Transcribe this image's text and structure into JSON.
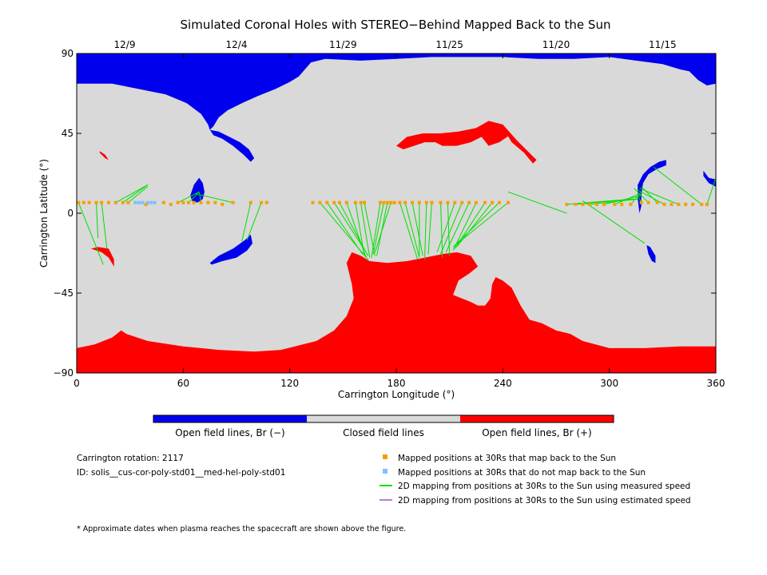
{
  "chart_data": {
    "type": "map",
    "title": "Simulated Coronal Holes with STEREO−Behind Mapped Back to the Sun",
    "xlabel": "Carrington Longitude (°)",
    "ylabel": "Carrington Latitude (°)",
    "xlim": [
      0,
      360
    ],
    "ylim": [
      -90,
      90
    ],
    "x_ticks": [
      "0",
      "60",
      "120",
      "180",
      "240",
      "300",
      "360"
    ],
    "y_ticks": [
      "90",
      "45",
      "0",
      "−45",
      "−90"
    ],
    "top_dates": [
      {
        "label": "12/9",
        "lon": 27
      },
      {
        "label": "12/4",
        "lon": 90
      },
      {
        "label": "11/29",
        "lon": 150
      },
      {
        "label": "11/25",
        "lon": 210
      },
      {
        "label": "11/20",
        "lon": 270
      },
      {
        "label": "11/15",
        "lon": 330
      }
    ],
    "colors": {
      "negative": "#0000ee",
      "closed": "#d9d9d9",
      "positive": "#ff0000",
      "mapped": "#f5a000",
      "unmapped": "#7fbfff",
      "measured": "#00e000",
      "estimated": "#b080e0"
    },
    "mapped_points": [
      {
        "lon": 1,
        "lat": 6
      },
      {
        "lon": 4,
        "lat": 6
      },
      {
        "lon": 7,
        "lat": 6
      },
      {
        "lon": 11,
        "lat": 6
      },
      {
        "lon": 14,
        "lat": 6
      },
      {
        "lon": 18,
        "lat": 6
      },
      {
        "lon": 22,
        "lat": 6
      },
      {
        "lon": 26,
        "lat": 6
      },
      {
        "lon": 29,
        "lat": 6
      },
      {
        "lon": 39,
        "lat": 5
      },
      {
        "lon": 49,
        "lat": 6
      },
      {
        "lon": 53,
        "lat": 5
      },
      {
        "lon": 57,
        "lat": 6
      },
      {
        "lon": 60,
        "lat": 6
      },
      {
        "lon": 63,
        "lat": 6
      },
      {
        "lon": 66,
        "lat": 6
      },
      {
        "lon": 70,
        "lat": 6
      },
      {
        "lon": 74,
        "lat": 6
      },
      {
        "lon": 78,
        "lat": 6
      },
      {
        "lon": 82,
        "lat": 5
      },
      {
        "lon": 88,
        "lat": 6
      },
      {
        "lon": 98,
        "lat": 6
      },
      {
        "lon": 104,
        "lat": 6
      },
      {
        "lon": 107,
        "lat": 6
      },
      {
        "lon": 133,
        "lat": 6
      },
      {
        "lon": 137,
        "lat": 6
      },
      {
        "lon": 141,
        "lat": 6
      },
      {
        "lon": 145,
        "lat": 6
      },
      {
        "lon": 148,
        "lat": 6
      },
      {
        "lon": 152,
        "lat": 6
      },
      {
        "lon": 157,
        "lat": 6
      },
      {
        "lon": 160,
        "lat": 6
      },
      {
        "lon": 162,
        "lat": 6
      },
      {
        "lon": 171,
        "lat": 6
      },
      {
        "lon": 173,
        "lat": 6
      },
      {
        "lon": 175,
        "lat": 6
      },
      {
        "lon": 177,
        "lat": 6
      },
      {
        "lon": 179,
        "lat": 6
      },
      {
        "lon": 182,
        "lat": 6
      },
      {
        "lon": 185,
        "lat": 6
      },
      {
        "lon": 189,
        "lat": 6
      },
      {
        "lon": 193,
        "lat": 6
      },
      {
        "lon": 197,
        "lat": 6
      },
      {
        "lon": 200,
        "lat": 6
      },
      {
        "lon": 205,
        "lat": 6
      },
      {
        "lon": 209,
        "lat": 6
      },
      {
        "lon": 213,
        "lat": 6
      },
      {
        "lon": 217,
        "lat": 6
      },
      {
        "lon": 221,
        "lat": 6
      },
      {
        "lon": 225,
        "lat": 6
      },
      {
        "lon": 230,
        "lat": 6
      },
      {
        "lon": 234,
        "lat": 6
      },
      {
        "lon": 238,
        "lat": 6
      },
      {
        "lon": 243,
        "lat": 6
      },
      {
        "lon": 276,
        "lat": 5
      },
      {
        "lon": 281,
        "lat": 5
      },
      {
        "lon": 285,
        "lat": 5
      },
      {
        "lon": 289,
        "lat": 5
      },
      {
        "lon": 293,
        "lat": 5
      },
      {
        "lon": 297,
        "lat": 5
      },
      {
        "lon": 303,
        "lat": 5
      },
      {
        "lon": 307,
        "lat": 5
      },
      {
        "lon": 312,
        "lat": 5
      },
      {
        "lon": 318,
        "lat": 6
      },
      {
        "lon": 322,
        "lat": 6
      },
      {
        "lon": 327,
        "lat": 6
      },
      {
        "lon": 331,
        "lat": 5
      },
      {
        "lon": 335,
        "lat": 5
      },
      {
        "lon": 339,
        "lat": 5
      },
      {
        "lon": 343,
        "lat": 5
      },
      {
        "lon": 347,
        "lat": 5
      },
      {
        "lon": 352,
        "lat": 5
      },
      {
        "lon": 355,
        "lat": 5
      }
    ],
    "unmapped_points": [
      {
        "lon": 33,
        "lat": 6
      },
      {
        "lon": 35,
        "lat": 6
      },
      {
        "lon": 37,
        "lat": 6
      },
      {
        "lon": 40,
        "lat": 6
      },
      {
        "lon": 42,
        "lat": 6
      },
      {
        "lon": 44,
        "lat": 6
      }
    ],
    "measured_lines": [
      {
        "from": [
          1,
          6
        ],
        "to": [
          15,
          -29
        ]
      },
      {
        "from": [
          11,
          6
        ],
        "to": [
          12,
          -14
        ]
      },
      {
        "from": [
          14,
          6
        ],
        "to": [
          17,
          -20
        ]
      },
      {
        "from": [
          22,
          6
        ],
        "to": [
          40,
          16
        ]
      },
      {
        "from": [
          29,
          6
        ],
        "to": [
          40,
          15
        ]
      },
      {
        "from": [
          26,
          6
        ],
        "to": [
          40,
          16
        ]
      },
      {
        "from": [
          57,
          6
        ],
        "to": [
          69,
          12
        ]
      },
      {
        "from": [
          63,
          6
        ],
        "to": [
          69,
          12
        ]
      },
      {
        "from": [
          70,
          6
        ],
        "to": [
          69,
          12
        ]
      },
      {
        "from": [
          88,
          6
        ],
        "to": [
          67,
          11
        ]
      },
      {
        "from": [
          98,
          6
        ],
        "to": [
          93,
          -16
        ]
      },
      {
        "from": [
          104,
          6
        ],
        "to": [
          96,
          -15
        ]
      },
      {
        "from": [
          137,
          6
        ],
        "to": [
          164,
          -26
        ]
      },
      {
        "from": [
          141,
          6
        ],
        "to": [
          161,
          -23
        ]
      },
      {
        "from": [
          145,
          6
        ],
        "to": [
          163,
          -22
        ]
      },
      {
        "from": [
          148,
          6
        ],
        "to": [
          164,
          -24
        ]
      },
      {
        "from": [
          152,
          6
        ],
        "to": [
          163,
          -25
        ]
      },
      {
        "from": [
          157,
          6
        ],
        "to": [
          162,
          -24
        ]
      },
      {
        "from": [
          160,
          6
        ],
        "to": [
          165,
          -25
        ]
      },
      {
        "from": [
          162,
          6
        ],
        "to": [
          168,
          -24
        ]
      },
      {
        "from": [
          171,
          6
        ],
        "to": [
          166,
          -25
        ]
      },
      {
        "from": [
          173,
          6
        ],
        "to": [
          167,
          -23
        ]
      },
      {
        "from": [
          175,
          6
        ],
        "to": [
          169,
          -24
        ]
      },
      {
        "from": [
          177,
          6
        ],
        "to": [
          168,
          -22
        ]
      },
      {
        "from": [
          182,
          6
        ],
        "to": [
          192,
          -26
        ]
      },
      {
        "from": [
          185,
          6
        ],
        "to": [
          193,
          -25
        ]
      },
      {
        "from": [
          189,
          6
        ],
        "to": [
          195,
          -24
        ]
      },
      {
        "from": [
          193,
          6
        ],
        "to": [
          193,
          -24
        ]
      },
      {
        "from": [
          197,
          6
        ],
        "to": [
          196,
          -26
        ]
      },
      {
        "from": [
          200,
          6
        ],
        "to": [
          198,
          -23
        ]
      },
      {
        "from": [
          205,
          6
        ],
        "to": [
          206,
          -25
        ]
      },
      {
        "from": [
          209,
          6
        ],
        "to": [
          210,
          -24
        ]
      },
      {
        "from": [
          213,
          6
        ],
        "to": [
          203,
          -22
        ]
      },
      {
        "from": [
          217,
          6
        ],
        "to": [
          205,
          -23
        ]
      },
      {
        "from": [
          221,
          6
        ],
        "to": [
          208,
          -22
        ]
      },
      {
        "from": [
          225,
          6
        ],
        "to": [
          212,
          -21
        ]
      },
      {
        "from": [
          230,
          6
        ],
        "to": [
          213,
          -20
        ]
      },
      {
        "from": [
          234,
          6
        ],
        "to": [
          214,
          -19
        ]
      },
      {
        "from": [
          238,
          6
        ],
        "to": [
          213,
          -18
        ]
      },
      {
        "from": [
          243,
          6
        ],
        "to": [
          212,
          -19
        ]
      },
      {
        "from": [
          243,
          12
        ],
        "to": [
          276,
          0
        ]
      },
      {
        "from": [
          276,
          5
        ],
        "to": [
          313,
          8
        ]
      },
      {
        "from": [
          281,
          5
        ],
        "to": [
          314,
          8
        ]
      },
      {
        "from": [
          289,
          5
        ],
        "to": [
          316,
          8
        ]
      },
      {
        "from": [
          297,
          5
        ],
        "to": [
          318,
          10
        ]
      },
      {
        "from": [
          303,
          5
        ],
        "to": [
          317,
          11
        ]
      },
      {
        "from": [
          285,
          7
        ],
        "to": [
          320,
          -17
        ]
      },
      {
        "from": [
          312,
          5
        ],
        "to": [
          318,
          12
        ]
      },
      {
        "from": [
          318,
          6
        ],
        "to": [
          316,
          10
        ]
      },
      {
        "from": [
          322,
          6
        ],
        "to": [
          314,
          14
        ]
      },
      {
        "from": [
          327,
          6
        ],
        "to": [
          318,
          15
        ]
      },
      {
        "from": [
          331,
          5
        ],
        "to": [
          316,
          13
        ]
      },
      {
        "from": [
          339,
          5
        ],
        "to": [
          317,
          14
        ]
      },
      {
        "from": [
          352,
          5
        ],
        "to": [
          325,
          26
        ]
      },
      {
        "from": [
          355,
          5
        ],
        "to": [
          360,
          20
        ]
      }
    ],
    "estimated_lines": [],
    "colorbar": {
      "labels": [
        "Open field lines, Br (−)",
        "Closed field lines",
        "Open field lines, Br (+)"
      ]
    },
    "info": {
      "rotation": "Carrington rotation: 2117",
      "id": "ID: solis__cus-cor-poly-std01__med-hel-poly-std01"
    },
    "legend": [
      {
        "kind": "square",
        "color": "#f5a000",
        "label": "Mapped positions at 30Rs that map back to the Sun"
      },
      {
        "kind": "square",
        "color": "#7fbfff",
        "label": "Mapped positions at 30Rs that do not map back to the Sun"
      },
      {
        "kind": "line",
        "color": "#00e000",
        "label": "2D mapping from positions at 30Rs to the Sun using measured speed"
      },
      {
        "kind": "line",
        "color": "#b080e0",
        "label": "2D mapping from positions at 30Rs to the Sun using estimated speed"
      }
    ],
    "footnote": "* Approximate dates when plasma reaches the spacecraft are shown above the figure."
  }
}
